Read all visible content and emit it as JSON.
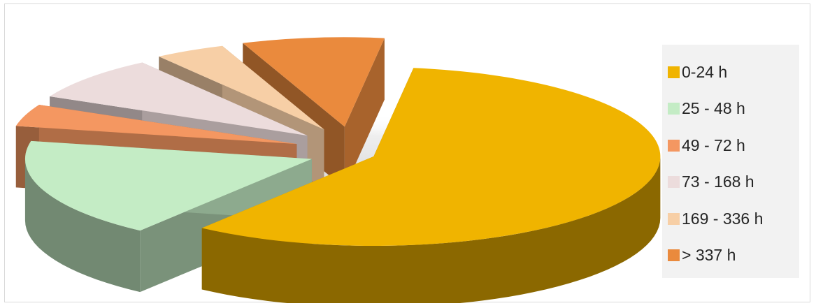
{
  "chart_data": {
    "type": "pie",
    "title": "",
    "categories": [
      "0-24 h",
      "25 - 48 h",
      "49 - 72 h",
      "73 - 168 h",
      "169 - 336 h",
      "> 337 h"
    ],
    "values": [
      58,
      18,
      4,
      8,
      4,
      8
    ],
    "exploded": true,
    "three_d": true,
    "legend_position": "right",
    "colors": [
      "#f0b400",
      "#c4ecc5",
      "#f49761",
      "#ecdcdc",
      "#f7cfa6",
      "#ea8a3d"
    ]
  }
}
